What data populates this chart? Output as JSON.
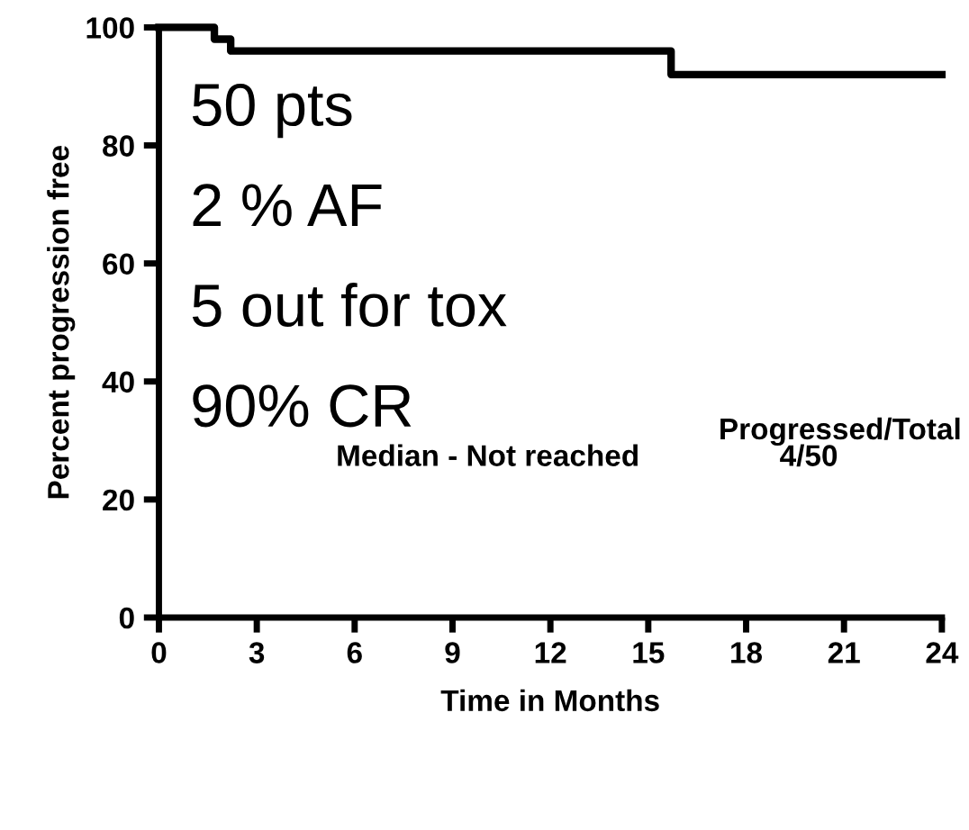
{
  "chart_data": {
    "type": "step",
    "xlabel": "Time in Months",
    "ylabel": "Percent progression free",
    "x": [
      0,
      1.7,
      2.2,
      15.7,
      24
    ],
    "series": [
      {
        "color": "#000000",
        "values": [
          100,
          98,
          96,
          92,
          92
        ]
      }
    ],
    "xlim": [
      0,
      24
    ],
    "xticks": [
      0,
      3,
      6,
      9,
      12,
      15,
      18,
      21,
      24
    ],
    "ylim": [
      0,
      100
    ],
    "yticks": [
      0,
      20,
      40,
      60,
      80,
      100
    ],
    "grid": false,
    "legend": false,
    "annotations": [
      "50 pts",
      "2 % AF",
      "5 out for tox",
      "90% CR",
      "Median - Not reached",
      "Progressed/Total",
      "4/50"
    ]
  }
}
